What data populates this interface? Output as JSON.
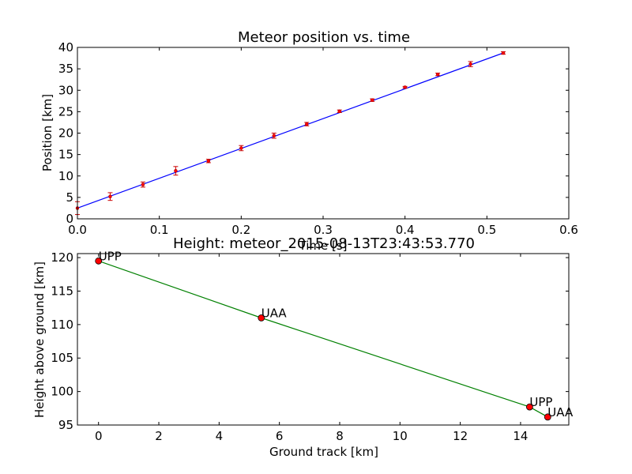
{
  "chart_data": [
    {
      "type": "scatter",
      "title": "Meteor position vs. time",
      "xlabel": "Time [s]",
      "ylabel": "Position [km]",
      "xlim": [
        0.0,
        0.6
      ],
      "ylim": [
        0,
        40
      ],
      "xticks": [
        "0.0",
        "0.1",
        "0.2",
        "0.3",
        "0.4",
        "0.5",
        "0.6"
      ],
      "yticks": [
        "0",
        "5",
        "10",
        "15",
        "20",
        "25",
        "30",
        "35",
        "40"
      ],
      "grid": false,
      "series": [
        {
          "x": [
            0.0,
            0.04,
            0.08,
            0.12,
            0.16,
            0.2,
            0.24,
            0.28,
            0.32,
            0.36,
            0.4,
            0.44,
            0.48,
            0.52
          ],
          "y": [
            2.5,
            5.2,
            8.0,
            11.2,
            13.5,
            16.5,
            19.4,
            22.1,
            25.1,
            27.7,
            30.7,
            33.7,
            36.1,
            38.7
          ],
          "yerr": [
            1.5,
            0.9,
            0.6,
            1.0,
            0.4,
            0.6,
            0.6,
            0.4,
            0.3,
            0.3,
            0.2,
            0.3,
            0.6,
            0.3
          ],
          "color": "#ff0000",
          "errorbar_color": "#cc0000"
        }
      ],
      "fit_line": {
        "x": [
          0.0,
          0.52
        ],
        "y": [
          2.5,
          38.7
        ],
        "color": "#0000ff"
      }
    },
    {
      "type": "line",
      "title": "Height: meteor_2015-08-13T23:43:53.770",
      "xlabel": "Ground track [km]",
      "ylabel": "Height above ground [km]",
      "xlim": [
        -0.7,
        15.6
      ],
      "ylim": [
        95,
        120.6
      ],
      "xticks": [
        "0",
        "2",
        "4",
        "6",
        "8",
        "10",
        "12",
        "14"
      ],
      "yticks": [
        "95",
        "100",
        "105",
        "110",
        "115",
        "120"
      ],
      "grid": false,
      "series": [
        {
          "x": [
            0.0,
            5.4,
            14.3,
            14.9
          ],
          "y": [
            119.5,
            111.0,
            97.7,
            96.2
          ],
          "labels": [
            "UPP",
            "UAA",
            "UPP",
            "UAA"
          ],
          "line_color": "#008000",
          "marker_color": "#ff0000"
        }
      ]
    }
  ]
}
